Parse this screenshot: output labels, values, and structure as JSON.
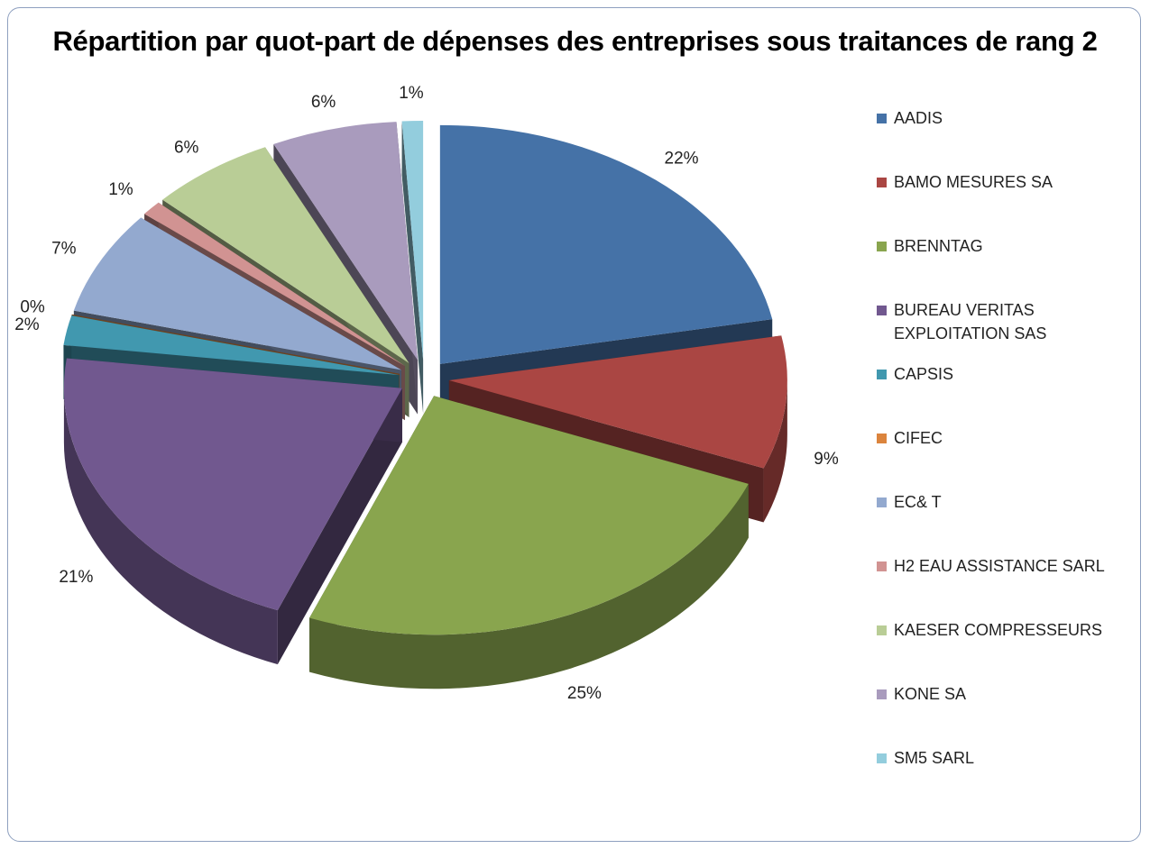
{
  "chart_data": {
    "type": "pie3d",
    "title": "Répartition par quot-part de dépenses des entreprises sous traitances de rang 2",
    "categories": [
      "AADIS",
      "BAMO MESURES SA",
      "BRENNTAG",
      "BUREAU VERITAS EXPLOITATION SAS",
      "CAPSIS",
      "CIFEC",
      "EC& T",
      "H2 EAU ASSISTANCE SARL",
      "KAESER COMPRESSEURS",
      "KONE SA",
      "SM5 SARL"
    ],
    "values": [
      22,
      9,
      25,
      21,
      2,
      0,
      7,
      1,
      6,
      6,
      1
    ],
    "value_labels": [
      "22%",
      "9%",
      "25%",
      "21%",
      "2%",
      "0%",
      "7%",
      "1%",
      "6%",
      "6%",
      "1%"
    ],
    "colors": [
      "#4572a7",
      "#aa4643",
      "#89a54e",
      "#71588f",
      "#4198af",
      "#db843d",
      "#93a9cf",
      "#d19392",
      "#b9cd96",
      "#a99bbd",
      "#93cddd"
    ],
    "legend": "right"
  }
}
